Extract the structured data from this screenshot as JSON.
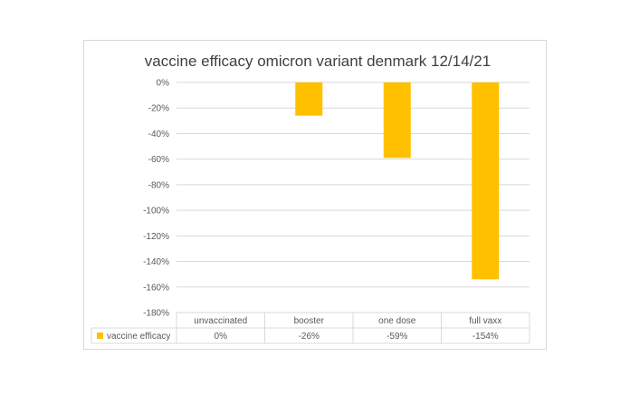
{
  "chart_data": {
    "type": "bar",
    "title": "vaccine efficacy omicron variant denmark 12/14/21",
    "categories": [
      "unvaccinated",
      "booster",
      "one dose",
      "full vaxx"
    ],
    "series": [
      {
        "name": "vaccine efficacy",
        "values": [
          0,
          -26,
          -59,
          -154
        ],
        "value_labels": [
          "0%",
          "-26%",
          "-59%",
          "-154%"
        ],
        "color": "#ffc000"
      }
    ],
    "ylim": [
      -180,
      0
    ],
    "y_ticks": [
      0,
      -20,
      -40,
      -60,
      -80,
      -100,
      -120,
      -140,
      -160,
      -180
    ],
    "y_tick_labels": [
      "0%",
      "-20%",
      "-40%",
      "-60%",
      "-80%",
      "-100%",
      "-120%",
      "-140%",
      "-160%",
      "-180%"
    ],
    "grid": true,
    "legend": "data-table-bottom"
  }
}
